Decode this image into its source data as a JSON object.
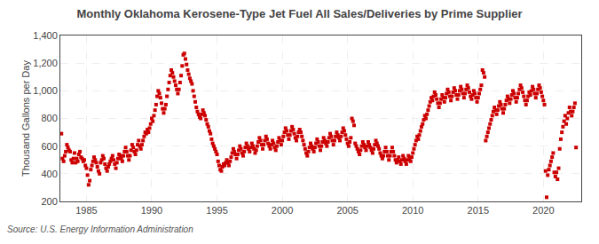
{
  "chart_data": {
    "type": "scatter",
    "title": "Monthly Oklahoma Kerosene-Type Jet Fuel All Sales/Deliveries by Prime Supplier",
    "ylabel": "Thousand Gallons per Day",
    "annotations": [
      "Source: U.S. Energy Information Administration"
    ],
    "color": "#cc0000",
    "marker": "square",
    "grid": true,
    "xlim": [
      1983.0,
      2022.9
    ],
    "xticks": [
      1985,
      1990,
      1995,
      2000,
      2005,
      2010,
      2015,
      2020
    ],
    "ylim": [
      200,
      1400
    ],
    "yticks": [
      200,
      400,
      600,
      800,
      {
        "value": 1000,
        "label": "1,000"
      },
      {
        "value": 1200,
        "label": "1,200"
      },
      {
        "value": 1400,
        "label": "1,400"
      }
    ],
    "x": [
      1983.083,
      1983.167,
      1983.25,
      1983.333,
      1983.417,
      1983.5,
      1983.583,
      1983.667,
      1983.75,
      1983.833,
      1983.917,
      1984.0,
      1984.083,
      1984.167,
      1984.25,
      1984.333,
      1984.417,
      1984.5,
      1984.583,
      1984.667,
      1984.75,
      1984.833,
      1984.917,
      1985.0,
      1985.083,
      1985.167,
      1985.25,
      1985.333,
      1985.417,
      1985.5,
      1985.583,
      1985.667,
      1985.75,
      1985.833,
      1985.917,
      1986.0,
      1986.083,
      1986.167,
      1986.25,
      1986.333,
      1986.417,
      1986.5,
      1986.583,
      1986.667,
      1986.75,
      1986.833,
      1986.917,
      1987.0,
      1987.083,
      1987.167,
      1987.25,
      1987.333,
      1987.417,
      1987.5,
      1987.583,
      1987.667,
      1987.75,
      1987.833,
      1987.917,
      1988.0,
      1988.083,
      1988.167,
      1988.25,
      1988.333,
      1988.417,
      1988.5,
      1988.583,
      1988.667,
      1988.75,
      1988.833,
      1988.917,
      1989.0,
      1989.083,
      1989.167,
      1989.25,
      1989.333,
      1989.417,
      1989.5,
      1989.583,
      1989.667,
      1989.75,
      1989.833,
      1989.917,
      1990.0,
      1990.083,
      1990.167,
      1990.25,
      1990.333,
      1990.417,
      1990.5,
      1990.583,
      1990.667,
      1990.75,
      1990.833,
      1990.917,
      1991.0,
      1991.083,
      1991.167,
      1991.25,
      1991.333,
      1991.417,
      1991.5,
      1991.583,
      1991.667,
      1991.75,
      1991.833,
      1991.917,
      1992.0,
      1992.083,
      1992.167,
      1992.25,
      1992.333,
      1992.417,
      1992.5,
      1992.583,
      1992.667,
      1992.75,
      1992.833,
      1992.917,
      1993.0,
      1993.083,
      1993.167,
      1993.25,
      1993.333,
      1993.417,
      1993.5,
      1993.583,
      1993.667,
      1993.75,
      1993.833,
      1993.917,
      1994.0,
      1994.083,
      1994.167,
      1994.25,
      1994.333,
      1994.417,
      1994.5,
      1994.583,
      1994.667,
      1994.75,
      1994.833,
      1994.917,
      1995.0,
      1995.083,
      1995.167,
      1995.25,
      1995.333,
      1995.417,
      1995.5,
      1995.583,
      1995.667,
      1995.75,
      1995.833,
      1995.917,
      1996.0,
      1996.083,
      1996.167,
      1996.25,
      1996.333,
      1996.417,
      1996.5,
      1996.583,
      1996.667,
      1996.75,
      1996.833,
      1996.917,
      1997.0,
      1997.083,
      1997.167,
      1997.25,
      1997.333,
      1997.417,
      1997.5,
      1997.583,
      1997.667,
      1997.75,
      1997.833,
      1997.917,
      1998.0,
      1998.083,
      1998.167,
      1998.25,
      1998.333,
      1998.417,
      1998.5,
      1998.583,
      1998.667,
      1998.75,
      1998.833,
      1998.917,
      1999.0,
      1999.083,
      1999.167,
      1999.25,
      1999.333,
      1999.417,
      1999.5,
      1999.583,
      1999.667,
      1999.75,
      1999.833,
      1999.917,
      2000.0,
      2000.083,
      2000.167,
      2000.25,
      2000.333,
      2000.417,
      2000.5,
      2000.583,
      2000.667,
      2000.75,
      2000.833,
      2000.917,
      2001.0,
      2001.083,
      2001.167,
      2001.25,
      2001.333,
      2001.417,
      2001.5,
      2001.583,
      2001.667,
      2001.75,
      2001.833,
      2001.917,
      2002.0,
      2002.083,
      2002.167,
      2002.25,
      2002.333,
      2002.417,
      2002.5,
      2002.583,
      2002.667,
      2002.75,
      2002.833,
      2002.917,
      2003.0,
      2003.083,
      2003.167,
      2003.25,
      2003.333,
      2003.417,
      2003.5,
      2003.583,
      2003.667,
      2003.75,
      2003.833,
      2003.917,
      2004.0,
      2004.083,
      2004.167,
      2004.25,
      2004.333,
      2004.417,
      2004.5,
      2004.583,
      2004.667,
      2004.75,
      2004.833,
      2004.917,
      2005.0,
      2005.083,
      2005.167,
      2005.25,
      2005.333,
      2005.417,
      2005.5,
      2005.583,
      2005.667,
      2005.75,
      2005.833,
      2005.917,
      2006.0,
      2006.083,
      2006.167,
      2006.25,
      2006.333,
      2006.417,
      2006.5,
      2006.583,
      2006.667,
      2006.75,
      2006.833,
      2006.917,
      2007.0,
      2007.083,
      2007.167,
      2007.25,
      2007.333,
      2007.417,
      2007.5,
      2007.583,
      2007.667,
      2007.75,
      2007.833,
      2007.917,
      2008.0,
      2008.083,
      2008.167,
      2008.25,
      2008.333,
      2008.417,
      2008.5,
      2008.583,
      2008.667,
      2008.75,
      2008.833,
      2008.917,
      2009.0,
      2009.083,
      2009.167,
      2009.25,
      2009.333,
      2009.417,
      2009.5,
      2009.583,
      2009.667,
      2009.75,
      2009.833,
      2009.917,
      2010.0,
      2010.083,
      2010.167,
      2010.25,
      2010.333,
      2010.417,
      2010.5,
      2010.583,
      2010.667,
      2010.75,
      2010.833,
      2010.917,
      2011.0,
      2011.083,
      2011.167,
      2011.25,
      2011.333,
      2011.417,
      2011.5,
      2011.583,
      2011.667,
      2011.75,
      2011.833,
      2011.917,
      2012.0,
      2012.083,
      2012.167,
      2012.25,
      2012.333,
      2012.417,
      2012.5,
      2012.583,
      2012.667,
      2012.75,
      2012.833,
      2012.917,
      2013.0,
      2013.083,
      2013.167,
      2013.25,
      2013.333,
      2013.417,
      2013.5,
      2013.583,
      2013.667,
      2013.75,
      2013.833,
      2013.917,
      2014.0,
      2014.083,
      2014.167,
      2014.25,
      2014.333,
      2014.417,
      2014.5,
      2014.583,
      2014.667,
      2014.75,
      2014.833,
      2014.917,
      2015.0,
      2015.083,
      2015.167,
      2015.25,
      2015.333,
      2015.417,
      2015.5,
      2015.583,
      2015.667,
      2015.75,
      2015.833,
      2015.917,
      2016.0,
      2016.083,
      2016.167,
      2016.25,
      2016.333,
      2016.417,
      2016.5,
      2016.583,
      2016.667,
      2016.75,
      2016.833,
      2016.917,
      2017.0,
      2017.083,
      2017.167,
      2017.25,
      2017.333,
      2017.417,
      2017.5,
      2017.583,
      2017.667,
      2017.75,
      2017.833,
      2017.917,
      2018.0,
      2018.083,
      2018.167,
      2018.25,
      2018.333,
      2018.417,
      2018.5,
      2018.583,
      2018.667,
      2018.75,
      2018.833,
      2018.917,
      2019.0,
      2019.083,
      2019.167,
      2019.25,
      2019.333,
      2019.417,
      2019.5,
      2019.583,
      2019.667,
      2019.75,
      2019.833,
      2019.917,
      2020.0,
      2020.083,
      2020.167,
      2020.25,
      2020.333,
      2020.417,
      2020.5,
      2020.583,
      2020.667,
      2020.75,
      2020.833,
      2020.917,
      2021.0,
      2021.083,
      2021.167,
      2021.25,
      2021.333,
      2021.417,
      2021.5,
      2021.583,
      2021.667,
      2021.75,
      2021.833,
      2021.917,
      2022.0,
      2022.083,
      2022.167,
      2022.25,
      2022.333,
      2022.417,
      2022.5
    ],
    "values": [
      690,
      510,
      490,
      530,
      560,
      610,
      590,
      570,
      560,
      500,
      480,
      510,
      550,
      480,
      510,
      490,
      540,
      560,
      520,
      510,
      490,
      500,
      460,
      440,
      390,
      320,
      350,
      430,
      460,
      490,
      520,
      500,
      480,
      450,
      420,
      400,
      480,
      500,
      530,
      510,
      470,
      440,
      420,
      450,
      470,
      490,
      510,
      530,
      500,
      470,
      440,
      480,
      510,
      540,
      530,
      510,
      490,
      530,
      560,
      590,
      560,
      530,
      500,
      530,
      570,
      610,
      590,
      560,
      540,
      570,
      610,
      640,
      600,
      580,
      610,
      640,
      670,
      700,
      690,
      720,
      700,
      730,
      760,
      800,
      780,
      820,
      860,
      900,
      960,
      1000,
      980,
      950,
      910,
      870,
      840,
      870,
      900,
      960,
      1010,
      1060,
      1110,
      1150,
      1130,
      1100,
      1070,
      1040,
      1010,
      980,
      1010,
      1060,
      1110,
      1180,
      1260,
      1270,
      1230,
      1190,
      1150,
      1120,
      1090,
      1070,
      1050,
      1000,
      960,
      920,
      880,
      850,
      830,
      810,
      800,
      830,
      860,
      840,
      820,
      790,
      760,
      740,
      710,
      690,
      650,
      620,
      600,
      580,
      560,
      540,
      490,
      460,
      430,
      420,
      450,
      470,
      460,
      480,
      500,
      480,
      460,
      490,
      520,
      550,
      580,
      560,
      540,
      510,
      540,
      570,
      600,
      580,
      550,
      530,
      560,
      590,
      620,
      600,
      580,
      560,
      590,
      620,
      600,
      580,
      550,
      570,
      600,
      630,
      660,
      640,
      610,
      580,
      610,
      640,
      670,
      650,
      620,
      600,
      580,
      610,
      640,
      620,
      590,
      570,
      600,
      630,
      660,
      640,
      610,
      640,
      670,
      700,
      730,
      710,
      680,
      650,
      680,
      710,
      740,
      720,
      690,
      660,
      640,
      670,
      700,
      720,
      700,
      670,
      640,
      610,
      580,
      550,
      530,
      560,
      590,
      620,
      600,
      580,
      560,
      590,
      620,
      650,
      630,
      600,
      570,
      600,
      630,
      660,
      640,
      620,
      600,
      630,
      660,
      690,
      670,
      640,
      610,
      640,
      670,
      700,
      680,
      660,
      640,
      670,
      700,
      730,
      710,
      680,
      650,
      620,
      600,
      630,
      660,
      800,
      780,
      750,
      620,
      600,
      580,
      560,
      540,
      570,
      600,
      630,
      610,
      590,
      570,
      600,
      630,
      610,
      590,
      570,
      550,
      580,
      610,
      640,
      620,
      600,
      580,
      550,
      530,
      510,
      530,
      560,
      590,
      560,
      530,
      500,
      530,
      560,
      590,
      560,
      530,
      500,
      480,
      500,
      520,
      490,
      470,
      500,
      530,
      510,
      490,
      470,
      500,
      530,
      510,
      490,
      520,
      550,
      580,
      610,
      640,
      670,
      650,
      680,
      710,
      740,
      760,
      790,
      820,
      800,
      830,
      860,
      890,
      920,
      950,
      930,
      960,
      990,
      970,
      940,
      910,
      880,
      910,
      940,
      970,
      950,
      920,
      950,
      980,
      1010,
      990,
      960,
      930,
      960,
      990,
      1020,
      1000,
      970,
      940,
      970,
      1000,
      1030,
      1010,
      980,
      950,
      980,
      1010,
      1040,
      1020,
      990,
      960,
      940,
      970,
      1000,
      980,
      950,
      920,
      950,
      980,
      1010,
      1040,
      1150,
      1130,
      1100,
      640,
      670,
      700,
      730,
      760,
      790,
      820,
      850,
      880,
      860,
      830,
      860,
      890,
      920,
      900,
      870,
      840,
      870,
      900,
      930,
      960,
      940,
      910,
      940,
      970,
      1000,
      980,
      950,
      920,
      950,
      980,
      1010,
      1040,
      1020,
      990,
      960,
      930,
      900,
      930,
      960,
      990,
      970,
      1000,
      1030,
      1010,
      980,
      950,
      980,
      1010,
      1040,
      1020,
      990,
      960,
      930,
      900,
      420,
      230,
      390,
      430,
      460,
      490,
      520,
      550,
      410,
      380,
      410,
      360,
      440,
      580,
      650,
      700,
      740,
      780,
      820,
      760,
      800,
      840,
      880,
      850,
      820,
      850,
      880,
      910,
      590
    ]
  }
}
